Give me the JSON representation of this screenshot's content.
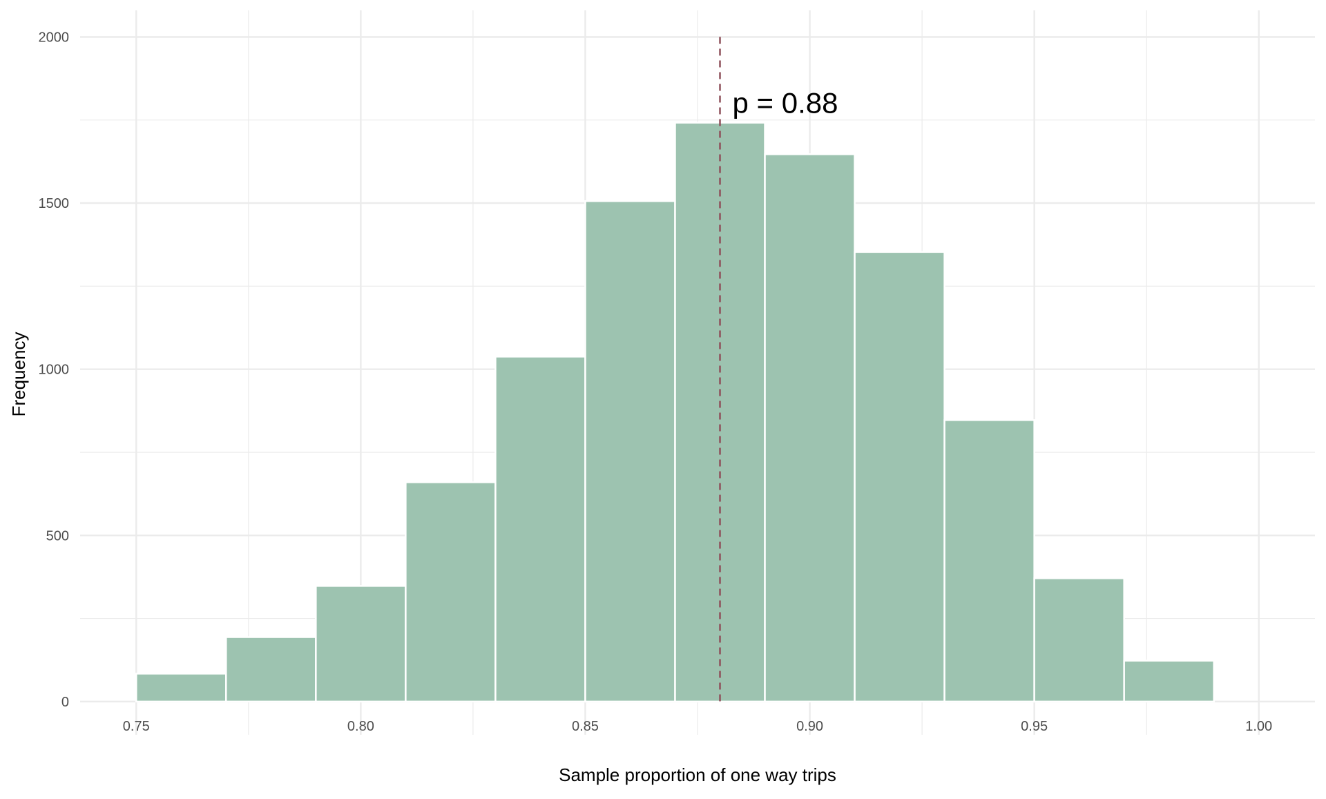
{
  "chart_data": {
    "type": "bar",
    "subtype": "histogram",
    "xlabel": "Sample proportion of one way trips",
    "ylabel": "Frequency",
    "xlim": [
      0.7375,
      1.0125
    ],
    "ylim": [
      -100,
      2080
    ],
    "x_ticks": [
      0.75,
      0.8,
      0.85,
      0.9,
      0.95,
      1.0
    ],
    "x_tick_labels": [
      "0.75",
      "0.80",
      "0.85",
      "0.90",
      "0.95",
      "1.00"
    ],
    "y_ticks": [
      0,
      500,
      1000,
      1500,
      2000
    ],
    "y_tick_labels": [
      "0",
      "500",
      "1000",
      "1500",
      "2000"
    ],
    "grid": true,
    "bin_width": 0.02,
    "bins": [
      {
        "start": 0.75,
        "end": 0.77,
        "count": 84
      },
      {
        "start": 0.77,
        "end": 0.79,
        "count": 194
      },
      {
        "start": 0.79,
        "end": 0.81,
        "count": 348
      },
      {
        "start": 0.81,
        "end": 0.83,
        "count": 660
      },
      {
        "start": 0.83,
        "end": 0.85,
        "count": 1038
      },
      {
        "start": 0.85,
        "end": 0.87,
        "count": 1506
      },
      {
        "start": 0.87,
        "end": 0.89,
        "count": 1742
      },
      {
        "start": 0.89,
        "end": 0.91,
        "count": 1647
      },
      {
        "start": 0.91,
        "end": 0.93,
        "count": 1353
      },
      {
        "start": 0.93,
        "end": 0.95,
        "count": 847
      },
      {
        "start": 0.95,
        "end": 0.97,
        "count": 371
      },
      {
        "start": 0.97,
        "end": 0.99,
        "count": 123
      }
    ],
    "reference_line": {
      "x": 0.88,
      "style": "dashed",
      "label": "p = 0.88",
      "label_y": 1800
    },
    "colors": {
      "bar": "#9DC3B0",
      "bar_edge": "#FFFFFF",
      "grid": "#EBEBEB",
      "reference_line": "#8E4F5A",
      "text": "#4D4D4D"
    }
  }
}
